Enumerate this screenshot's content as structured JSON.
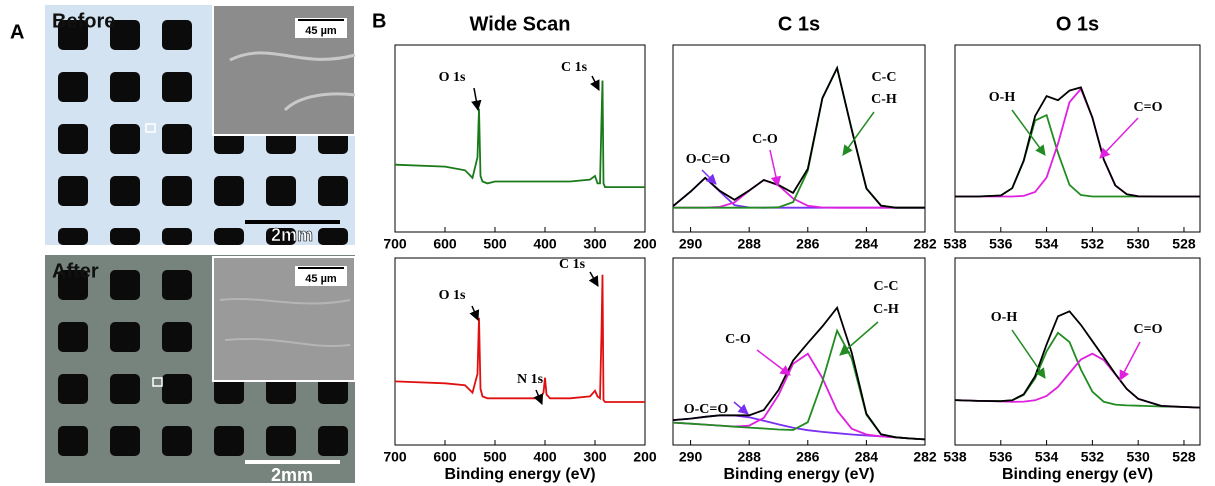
{
  "figure": {
    "panel_labels": [
      "A",
      "B"
    ],
    "photos": [
      {
        "label": "Before",
        "inset_scale": "45 µm",
        "scale_bar": "2mm"
      },
      {
        "label": "After",
        "inset_scale": "45 µm",
        "scale_bar": "2mm"
      }
    ]
  },
  "chart_data": [
    {
      "type": "line",
      "title": "Wide Scan",
      "xlim": [
        700,
        200
      ],
      "xticks": [
        700,
        600,
        500,
        400,
        300,
        200
      ],
      "ylim": [
        0,
        100
      ],
      "x": [
        700,
        600,
        560,
        545,
        535,
        532,
        529,
        525,
        515,
        500,
        450,
        400,
        350,
        310,
        300,
        295,
        290,
        287,
        285,
        283,
        280,
        250,
        200
      ],
      "series": [
        {
          "color": "#1a7a1a",
          "values": [
            36,
            35,
            33,
            29,
            40,
            66,
            30,
            27,
            26,
            27,
            27,
            27,
            27,
            28,
            30,
            26,
            26,
            60,
            81,
            26,
            24,
            24,
            24
          ]
        }
      ],
      "annotations": [
        "O 1s",
        "C 1s"
      ]
    },
    {
      "type": "line",
      "title": "C 1s",
      "xlim": [
        290.6,
        282
      ],
      "xticks": [
        290,
        288,
        286,
        284,
        282
      ],
      "ylim": [
        0,
        100
      ],
      "x": [
        290.6,
        290,
        289.5,
        289,
        288.5,
        288,
        287.5,
        287,
        286.5,
        286,
        285.5,
        285,
        284.5,
        284,
        283.5,
        283,
        282.5,
        282
      ],
      "series": [
        {
          "color": "#7b2ff0",
          "values": [
            13.8,
            21.6,
            29,
            21.6,
            14.4,
            13.1,
            13,
            13,
            13,
            13,
            13,
            13,
            13,
            13,
            13,
            13,
            13,
            13
          ]
        },
        {
          "color": "#e020e0",
          "values": [
            13,
            13,
            13,
            13.4,
            15.8,
            22.1,
            27.8,
            25,
            17.9,
            14,
            13.1,
            13,
            13,
            13,
            13,
            13,
            13,
            13
          ]
        },
        {
          "color": "#228b22",
          "values": [
            13,
            13,
            13,
            13,
            13,
            13,
            13,
            13.2,
            16,
            32.8,
            71.5,
            87.7,
            54.8,
            23.3,
            14.1,
            13,
            13,
            13
          ]
        },
        {
          "color": "#000000",
          "values": [
            13.8,
            21.6,
            29,
            22,
            17.2,
            22.2,
            27.8,
            25.2,
            20.9,
            33.8,
            71.6,
            87.7,
            54.8,
            23.3,
            14.1,
            13,
            13,
            13
          ]
        }
      ],
      "annotations": [
        "O-C=O",
        "C-O",
        "C-C",
        "C-H"
      ]
    },
    {
      "type": "line",
      "title": "O 1s",
      "xlim": [
        538,
        527.3
      ],
      "xticks": [
        538,
        536,
        534,
        532,
        530,
        528
      ],
      "ylim": [
        0,
        100
      ],
      "x": [
        538,
        537,
        536,
        535.5,
        535,
        534.5,
        534,
        533.5,
        533,
        532.5,
        532,
        531.5,
        531,
        530.5,
        530,
        529,
        528,
        527.3
      ],
      "series": [
        {
          "color": "#228b22",
          "values": [
            19,
            19,
            19.5,
            23.4,
            37.9,
            59.6,
            62.5,
            42.3,
            25.2,
            19.8,
            19,
            19,
            19,
            19,
            19,
            19,
            19,
            19
          ]
        },
        {
          "color": "#e020e0",
          "values": [
            19,
            19,
            19,
            19,
            19.3,
            21.4,
            29.2,
            47.2,
            69.4,
            76.5,
            61.1,
            38.7,
            24.9,
            20.2,
            19.1,
            19,
            19,
            19
          ]
        },
        {
          "color": "#000000",
          "values": [
            19,
            19,
            19.5,
            23.4,
            38.2,
            62,
            72.7,
            70.5,
            75.6,
            77.3,
            61.1,
            38.7,
            24.9,
            20.2,
            19.1,
            19,
            19,
            19
          ]
        }
      ],
      "annotations": [
        "O-H",
        "C=O"
      ]
    },
    {
      "type": "line",
      "xlabel": "Binding energy (eV)",
      "xlim": [
        700,
        200
      ],
      "xticks": [
        700,
        600,
        500,
        400,
        300,
        200
      ],
      "ylim": [
        0,
        100
      ],
      "x": [
        700,
        600,
        560,
        545,
        535,
        532,
        529,
        525,
        515,
        500,
        450,
        410,
        403,
        400,
        397,
        390,
        350,
        310,
        300,
        295,
        290,
        287,
        285,
        283,
        280,
        250,
        200
      ],
      "series": [
        {
          "color": "#e01010",
          "values": [
            34,
            33,
            32,
            28,
            38,
            68,
            30,
            26,
            25,
            25,
            25,
            25,
            28,
            36,
            27,
            25,
            25,
            26,
            29,
            26,
            25,
            60,
            91,
            24,
            23,
            23,
            23
          ]
        }
      ],
      "annotations": [
        "O 1s",
        "N 1s",
        "C 1s"
      ]
    },
    {
      "type": "line",
      "xlabel": "Binding energy (eV)",
      "xlim": [
        290.6,
        282
      ],
      "xticks": [
        290,
        288,
        286,
        284,
        282
      ],
      "ylim": [
        0,
        100
      ],
      "x": [
        290.6,
        290,
        289.5,
        289,
        288.5,
        288,
        287.5,
        287,
        286.5,
        286,
        285.5,
        285,
        284.5,
        284,
        283.5,
        283,
        282.5,
        282
      ],
      "series": [
        {
          "color": "#7b2ff0",
          "values": [
            13.3,
            14.1,
            15.1,
            15.9,
            15.8,
            14.8,
            13,
            11,
            9.2,
            7.9,
            7,
            6.3,
            5.6,
            5.1,
            4.6,
            4.1,
            3.5,
            3
          ]
        },
        {
          "color": "#e020e0",
          "values": [
            12,
            11.4,
            10.9,
            10.4,
            9.9,
            10.4,
            14.5,
            26.7,
            43.4,
            48.8,
            35.8,
            18.4,
            8.7,
            5.6,
            4.6,
            4.1,
            3.5,
            3
          ]
        },
        {
          "color": "#228b22",
          "values": [
            12,
            11.4,
            10.9,
            10.4,
            9.8,
            9.3,
            8.8,
            8.3,
            8,
            12.2,
            34,
            61.1,
            46.3,
            16.2,
            5.7,
            4.1,
            3.5,
            3
          ]
        },
        {
          "color": "#000000",
          "values": [
            13.3,
            14.1,
            15.1,
            15.9,
            15.9,
            15.9,
            18.7,
            29.4,
            45.2,
            54.5,
            63.4,
            73.4,
            49.4,
            16.7,
            5.7,
            4.1,
            3.5,
            3
          ]
        }
      ],
      "annotations": [
        "O-C=O",
        "C-O",
        "C-C",
        "C-H"
      ]
    },
    {
      "type": "line",
      "xlabel": "Binding energy (eV)",
      "xlim": [
        538,
        527.3
      ],
      "xticks": [
        538,
        536,
        534,
        532,
        530,
        528
      ],
      "ylim": [
        0,
        100
      ],
      "x": [
        538,
        537,
        536,
        535.5,
        535,
        534.5,
        534,
        533.5,
        533,
        532.5,
        532,
        531.5,
        531,
        530.5,
        530,
        529,
        528,
        527.3
      ],
      "series": [
        {
          "color": "#228b22",
          "values": [
            24,
            23.6,
            23.4,
            23.9,
            26.8,
            35.6,
            50.1,
            60,
            55.1,
            40.4,
            28.5,
            23.1,
            21.6,
            21.2,
            21,
            20.6,
            20.3,
            20
          ]
        },
        {
          "color": "#e020e0",
          "values": [
            24,
            23.6,
            23.3,
            23.1,
            23.2,
            23.9,
            26.2,
            31.1,
            38.5,
            45.7,
            48.8,
            45.4,
            37.8,
            30,
            24.7,
            20.9,
            20.3,
            20
          ]
        },
        {
          "color": "#000000",
          "values": [
            24,
            23.6,
            23.4,
            23.9,
            27.1,
            36.8,
            53.8,
            68.8,
            71.5,
            64.2,
            55.5,
            46.9,
            38,
            30,
            24.7,
            20.9,
            20.3,
            20
          ]
        }
      ],
      "annotations": [
        "O-H",
        "C=O"
      ]
    }
  ]
}
